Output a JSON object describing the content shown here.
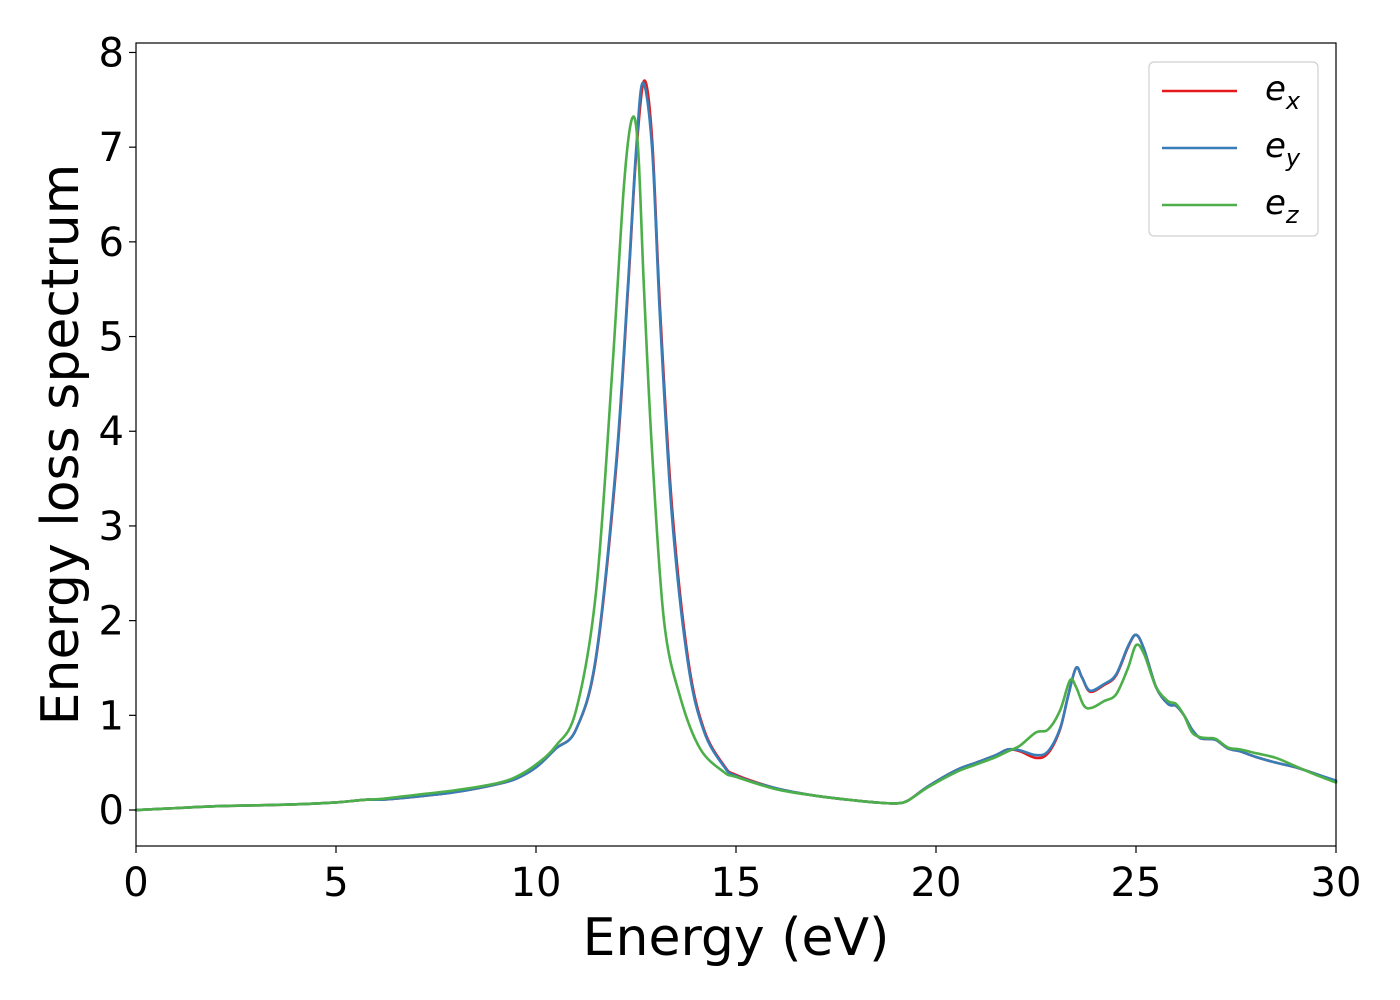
{
  "chart_data": {
    "type": "line",
    "xlabel": "Energy (eV)",
    "ylabel": "Energy loss spectrum",
    "xlim": [
      0,
      30
    ],
    "ylim": [
      -0.38,
      8.1
    ],
    "xticks": [
      0,
      5,
      10,
      15,
      20,
      25,
      30
    ],
    "yticks": [
      0,
      1,
      2,
      3,
      4,
      5,
      6,
      7,
      8
    ],
    "grid": false,
    "legend_position": "top-right",
    "series": [
      {
        "name": "e_x",
        "label_base": "e",
        "label_sub": "x",
        "color": "#e41a1c",
        "x": [
          0,
          1,
          2,
          3,
          4,
          5,
          5.5,
          5.8,
          6.2,
          7,
          8,
          9,
          9.5,
          10,
          10.5,
          11,
          11.5,
          12,
          12.3,
          12.5,
          12.7,
          12.9,
          13.1,
          13.4,
          13.8,
          14.2,
          14.7,
          15,
          16,
          17,
          18,
          18.5,
          19,
          19.3,
          19.8,
          20.5,
          21,
          21.5,
          21.8,
          22.1,
          22.5,
          22.8,
          23.1,
          23.3,
          23.5,
          23.65,
          23.85,
          24.2,
          24.5,
          24.8,
          25,
          25.2,
          25.5,
          25.8,
          26,
          26.2,
          26.4,
          26.6,
          26.8,
          27,
          27.3,
          27.6,
          28,
          28.5,
          29,
          29.5,
          30
        ],
        "y": [
          0,
          0.02,
          0.04,
          0.05,
          0.06,
          0.08,
          0.1,
          0.11,
          0.11,
          0.14,
          0.19,
          0.27,
          0.33,
          0.45,
          0.65,
          0.85,
          1.6,
          3.6,
          5.5,
          6.9,
          7.7,
          7.1,
          5.3,
          3.2,
          1.6,
          0.85,
          0.47,
          0.37,
          0.23,
          0.15,
          0.1,
          0.08,
          0.07,
          0.1,
          0.25,
          0.42,
          0.5,
          0.58,
          0.64,
          0.62,
          0.55,
          0.6,
          0.85,
          1.2,
          1.5,
          1.4,
          1.25,
          1.32,
          1.42,
          1.72,
          1.85,
          1.7,
          1.3,
          1.12,
          1.1,
          1.0,
          0.85,
          0.76,
          0.75,
          0.74,
          0.65,
          0.62,
          0.56,
          0.5,
          0.45,
          0.38,
          0.3
        ]
      },
      {
        "name": "e_y",
        "label_base": "e",
        "label_sub": "y",
        "color": "#377eb8",
        "x": [
          0,
          1,
          2,
          3,
          4,
          5,
          5.5,
          5.8,
          6.2,
          7,
          8,
          9,
          9.5,
          10,
          10.5,
          11,
          11.5,
          12,
          12.3,
          12.5,
          12.67,
          12.9,
          13.1,
          13.4,
          13.8,
          14.2,
          14.7,
          15,
          16,
          17,
          18,
          18.5,
          19,
          19.3,
          19.8,
          20.5,
          21,
          21.5,
          21.8,
          22.1,
          22.5,
          22.8,
          23.1,
          23.3,
          23.5,
          23.65,
          23.85,
          24.2,
          24.5,
          24.8,
          25,
          25.2,
          25.5,
          25.8,
          26,
          26.2,
          26.4,
          26.6,
          26.8,
          27,
          27.3,
          27.6,
          28,
          28.5,
          29,
          29.5,
          30
        ],
        "y": [
          0,
          0.02,
          0.04,
          0.05,
          0.06,
          0.08,
          0.1,
          0.11,
          0.11,
          0.14,
          0.19,
          0.27,
          0.33,
          0.45,
          0.65,
          0.85,
          1.62,
          3.65,
          5.55,
          6.95,
          7.68,
          7.0,
          5.2,
          3.1,
          1.55,
          0.83,
          0.46,
          0.36,
          0.23,
          0.15,
          0.1,
          0.08,
          0.07,
          0.1,
          0.25,
          0.42,
          0.5,
          0.58,
          0.64,
          0.63,
          0.58,
          0.62,
          0.86,
          1.2,
          1.5,
          1.4,
          1.26,
          1.33,
          1.43,
          1.73,
          1.85,
          1.7,
          1.3,
          1.12,
          1.1,
          1.0,
          0.85,
          0.76,
          0.75,
          0.74,
          0.65,
          0.62,
          0.56,
          0.5,
          0.45,
          0.38,
          0.31
        ]
      },
      {
        "name": "e_z",
        "label_base": "e",
        "label_sub": "z",
        "color": "#4daf4a",
        "x": [
          0,
          1,
          2,
          3,
          4,
          5,
          5.5,
          5.8,
          6.2,
          7,
          8,
          9,
          9.5,
          10,
          10.5,
          11,
          11.5,
          11.9,
          12.2,
          12.4,
          12.55,
          12.7,
          12.9,
          13.2,
          13.6,
          14.1,
          14.7,
          15,
          16,
          17,
          18,
          18.5,
          19,
          19.3,
          19.8,
          20.5,
          21,
          21.5,
          21.8,
          22.1,
          22.5,
          22.8,
          23.1,
          23.35,
          23.5,
          23.7,
          23.9,
          24.2,
          24.5,
          24.8,
          25,
          25.2,
          25.5,
          25.8,
          26,
          26.2,
          26.4,
          26.6,
          26.8,
          27,
          27.3,
          27.6,
          28,
          28.5,
          29,
          29.5,
          30
        ],
        "y": [
          0,
          0.02,
          0.04,
          0.05,
          0.06,
          0.08,
          0.1,
          0.11,
          0.12,
          0.16,
          0.21,
          0.28,
          0.35,
          0.48,
          0.68,
          1.05,
          2.3,
          4.6,
          6.6,
          7.3,
          7.0,
          5.5,
          3.8,
          2.0,
          1.2,
          0.65,
          0.4,
          0.35,
          0.22,
          0.15,
          0.1,
          0.08,
          0.07,
          0.1,
          0.24,
          0.4,
          0.48,
          0.56,
          0.62,
          0.68,
          0.82,
          0.85,
          1.05,
          1.37,
          1.3,
          1.1,
          1.08,
          1.15,
          1.22,
          1.5,
          1.74,
          1.65,
          1.3,
          1.15,
          1.12,
          1.0,
          0.82,
          0.77,
          0.76,
          0.75,
          0.66,
          0.64,
          0.6,
          0.55,
          0.46,
          0.37,
          0.29
        ]
      }
    ]
  }
}
